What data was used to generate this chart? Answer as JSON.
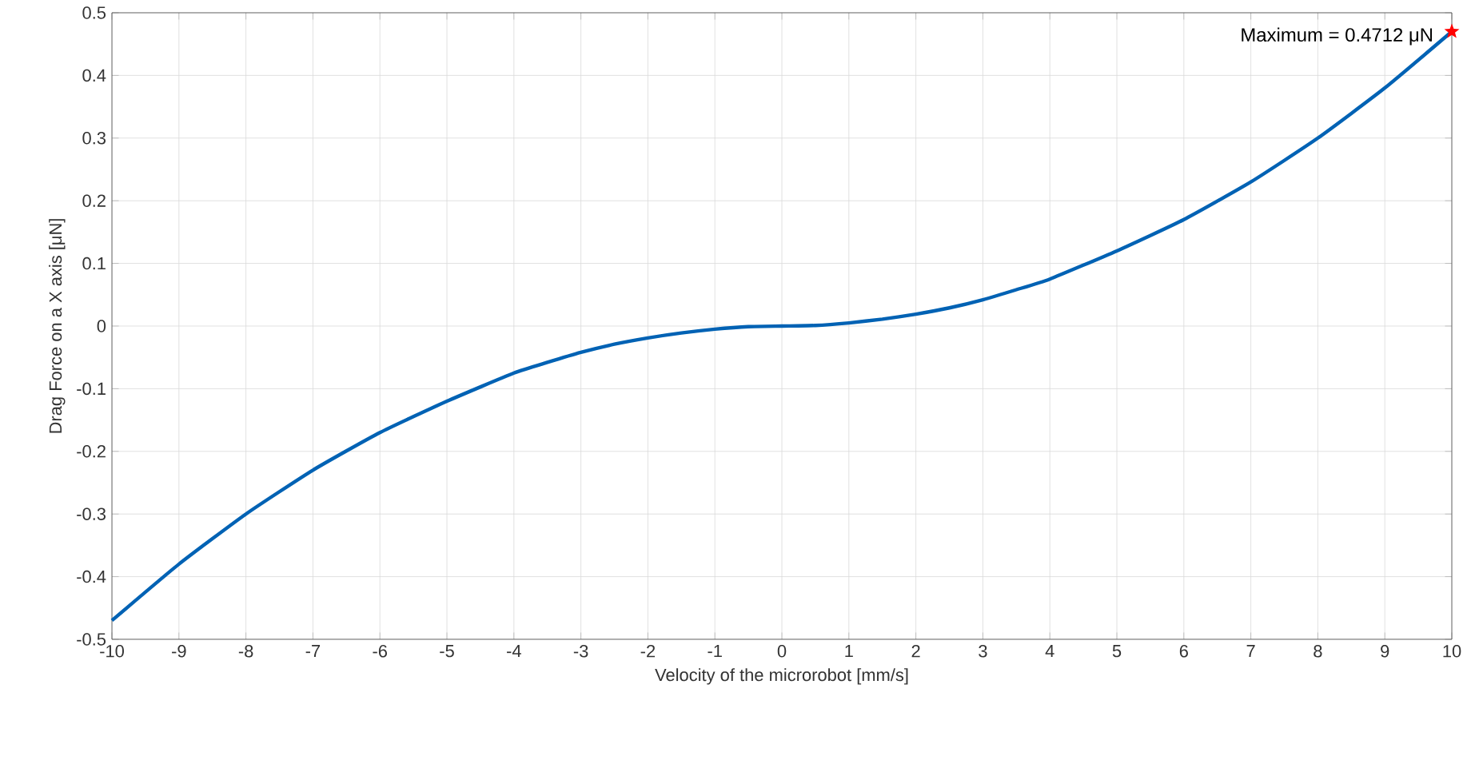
{
  "chart_data": {
    "type": "line",
    "xlabel": "Velocity of the microrobot [mm/s]",
    "ylabel": "Drag Force on a X axis [μN]",
    "x": [
      -10,
      -9,
      -8,
      -7,
      -6,
      -5,
      -4,
      -3.5,
      -3,
      -2.5,
      -2,
      -1.5,
      -1,
      -0.5,
      0,
      0.5,
      1,
      1.5,
      2,
      2.5,
      3,
      3.5,
      4,
      5,
      6,
      7,
      8,
      9,
      10
    ],
    "series": [
      {
        "color": "#0062b4",
        "values": [
          -0.47,
          -0.38,
          -0.3,
          -0.23,
          -0.17,
          -0.12,
          -0.075,
          -0.058,
          -0.042,
          -0.029,
          -0.019,
          -0.011,
          -0.005,
          -0.001,
          0,
          0.001,
          0.005,
          0.011,
          0.019,
          0.029,
          0.042,
          0.058,
          0.075,
          0.12,
          0.17,
          0.23,
          0.3,
          0.38,
          0.47
        ]
      },
      {
        "type": "scatter",
        "color": "#ff0000",
        "marker": "star",
        "x": [
          10
        ],
        "values": [
          0.47
        ]
      }
    ],
    "annotations": [
      {
        "text": "Maximum = 0.4712 μN",
        "x": 10,
        "y": 0.47
      }
    ],
    "xlim": [
      -10,
      10
    ],
    "ylim": [
      -0.5,
      0.5
    ],
    "xticks": [
      -10,
      -9,
      -8,
      -7,
      -6,
      -5,
      -4,
      -3,
      -2,
      -1,
      0,
      1,
      2,
      3,
      4,
      5,
      6,
      7,
      8,
      9,
      10
    ],
    "yticks": [
      -0.5,
      -0.4,
      -0.3,
      -0.2,
      -0.1,
      0,
      0.1,
      0.2,
      0.3,
      0.4,
      0.5
    ],
    "grid": true
  }
}
